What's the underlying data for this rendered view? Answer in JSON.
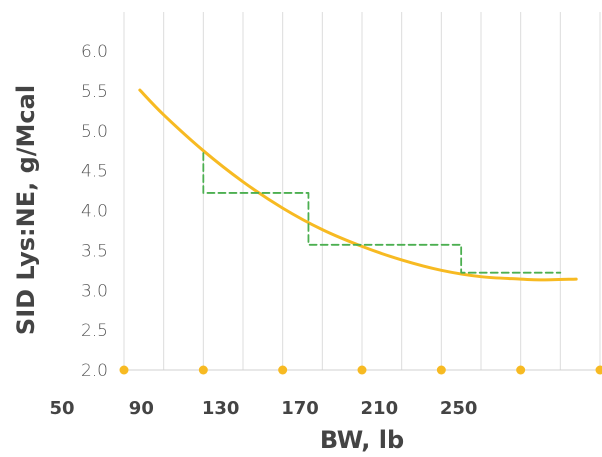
{
  "chart_data": {
    "type": "line",
    "xlabel": "BW, lb",
    "ylabel": "SID Lys:NE, g/Mcal",
    "xlim": [
      50,
      290
    ],
    "ylim": [
      2.0,
      6.0
    ],
    "x_ticks": [
      "50",
      "90",
      "130",
      "170",
      "210",
      "250"
    ],
    "y_ticks": [
      "2.0",
      "2.5",
      "3.0",
      "3.5",
      "4.0",
      "4.5",
      "5.0",
      "5.5",
      "6.0"
    ],
    "grid": "vertical",
    "series": [
      {
        "style": "solid",
        "color": "#F7BA22",
        "x": [
          58,
          70,
          90,
          110,
          130,
          150,
          170,
          190,
          210,
          230,
          250,
          260,
          278
        ],
        "y": [
          5.51,
          5.2,
          4.75,
          4.36,
          4.03,
          3.76,
          3.55,
          3.38,
          3.25,
          3.17,
          3.14,
          3.13,
          3.14
        ]
      },
      {
        "style": "dashed",
        "color": "#4CAF50",
        "x": [
          90,
          90,
          143,
          143,
          220,
          220,
          270
        ],
        "y": [
          4.72,
          4.22,
          4.22,
          3.57,
          3.57,
          3.22,
          3.22
        ]
      }
    ]
  }
}
